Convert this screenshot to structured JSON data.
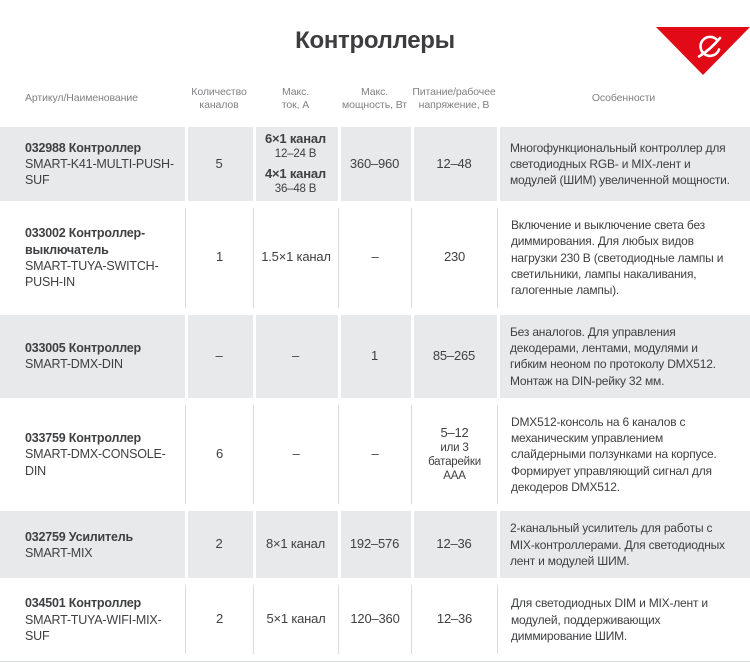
{
  "page": {
    "title": "Контроллеры"
  },
  "brand": {
    "icon": "arlight-swoosh-icon",
    "accent_color": "#e20a17"
  },
  "colors": {
    "row_gray": "#e8e9ea",
    "text": "#3f4042",
    "header_text": "#808184",
    "separator": "#dadbdc"
  },
  "table": {
    "headers": [
      "Артикул/Наименование",
      "Количество каналов",
      "Макс. ток, А",
      "Макс. мощность, Вт",
      "Питание/рабочее напряжение, В",
      "Особенности"
    ],
    "rows": [
      {
        "article": "032988 Контроллер",
        "model": "SMART-K41-MULTI-PUSH-SUF",
        "channels": "5",
        "current": [
          {
            "label": "6×1 канал",
            "sub": "12–24 В"
          },
          {
            "label": "4×1 канал",
            "sub": "36–48 В"
          }
        ],
        "power": "360–960",
        "voltage": {
          "value": "12–48"
        },
        "features": "Многофункциональный контроллер для светодиодных RGB- и MIX-лент и модулей (ШИМ) увеличенной мощности."
      },
      {
        "article": "033002 Контроллер-выключатель",
        "model": "SMART-TUYA-SWITCH-PUSH-IN",
        "channels": "1",
        "current": [
          {
            "label": "1.5×1 канал"
          }
        ],
        "power": "–",
        "voltage": {
          "value": "230"
        },
        "features": "Включение и выключение света без диммирования. Для любых видов нагрузки 230 В (светодиодные лампы и светильники, лампы накаливания, галогенные лампы)."
      },
      {
        "article": "033005 Контроллер",
        "model": "SMART-DMX-DIN",
        "channels": "–",
        "current": [
          {
            "label": "–"
          }
        ],
        "power": "1",
        "voltage": {
          "value": "85–265"
        },
        "features": "Без аналогов. Для управления декодерами, лентами, модулями и гибким неоном по протоколу DMX512. Монтаж на DIN-рейку 32 мм."
      },
      {
        "article": "033759 Контроллер",
        "model": "SMART-DMX-CONSOLE-DIN",
        "channels": "6",
        "current": [
          {
            "label": "–"
          }
        ],
        "power": "–",
        "voltage": {
          "value": "5–12",
          "sub": "или 3 батарейки ААА"
        },
        "features": "DMX512-консоль на 6 каналов с механическим управлением слайдерными ползунками на корпусе. Формирует управляющий сигнал для декодеров DMX512."
      },
      {
        "article": "032759 Усилитель",
        "model": "SMART-MIX",
        "channels": "2",
        "current": [
          {
            "label": "8×1 канал"
          }
        ],
        "power": "192–576",
        "voltage": {
          "value": "12–36"
        },
        "features": "2-канальный усилитель для работы с MIX-контроллерами. Для светодиодных лент и модулей ШИМ."
      },
      {
        "article": "034501 Контроллер",
        "model": "SMART-TUYA-WIFI-MIX-SUF",
        "channels": "2",
        "current": [
          {
            "label": "5×1 канал"
          }
        ],
        "power": "120–360",
        "voltage": {
          "value": "12–36"
        },
        "features": "Для светодиодных DIM и MIX-лент и модулей, поддерживающих диммирование ШИМ."
      }
    ]
  }
}
